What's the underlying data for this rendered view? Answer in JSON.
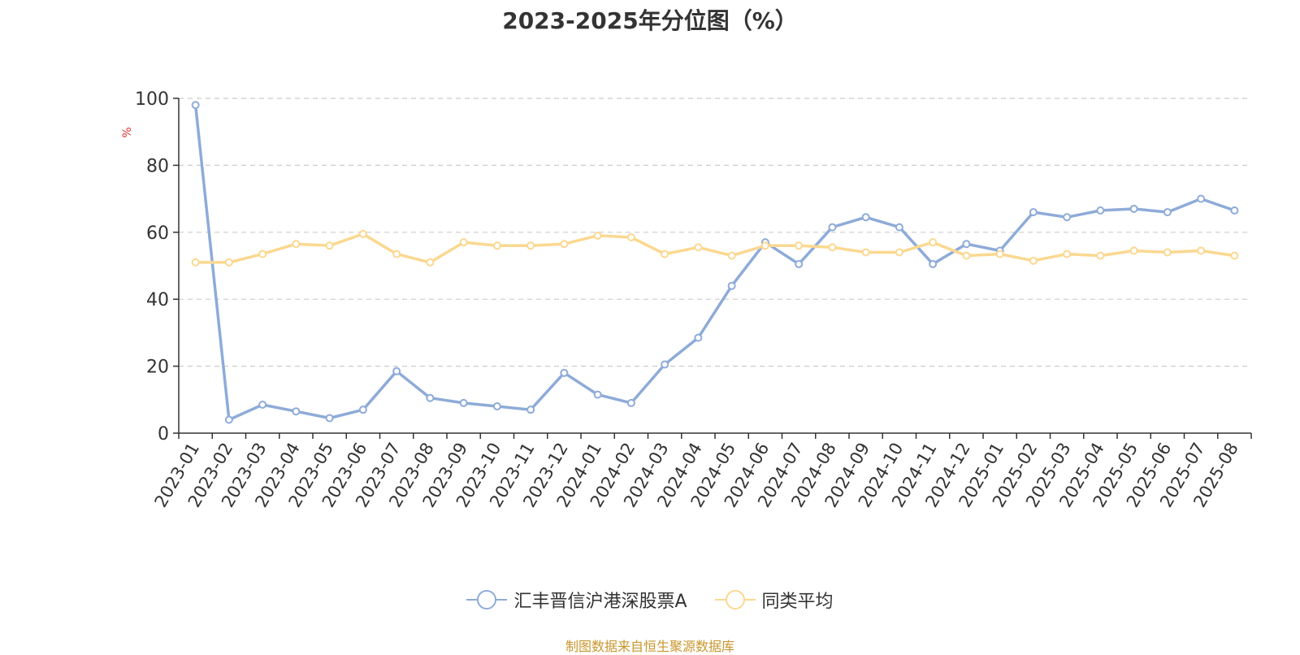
{
  "chart_data": {
    "type": "line",
    "title": "2023-2025年分位图（%）",
    "ylabel": "%",
    "ylim": [
      0,
      100
    ],
    "yticks": [
      0,
      20,
      40,
      60,
      80,
      100
    ],
    "grid": true,
    "legend_position": "bottom",
    "categories": [
      "2023-01",
      "2023-02",
      "2023-03",
      "2023-04",
      "2023-05",
      "2023-06",
      "2023-07",
      "2023-08",
      "2023-09",
      "2023-10",
      "2023-11",
      "2023-12",
      "2024-01",
      "2024-02",
      "2024-03",
      "2024-04",
      "2024-05",
      "2024-06",
      "2024-07",
      "2024-08",
      "2024-09",
      "2024-10",
      "2024-11",
      "2024-12",
      "2025-01",
      "2025-02",
      "2025-03",
      "2025-04",
      "2025-05",
      "2025-06",
      "2025-07",
      "2025-08"
    ],
    "series": [
      {
        "name": "汇丰晋信沪港深股票A",
        "color": "#8eabd8",
        "values": [
          98,
          4,
          8.5,
          6.5,
          4.5,
          7,
          18.5,
          10.5,
          9,
          8,
          7,
          18,
          11.5,
          9,
          20.5,
          28.5,
          44,
          57,
          50.5,
          61.5,
          64.5,
          61.5,
          50.5,
          56.5,
          54.5,
          66,
          64.5,
          66.5,
          67,
          66,
          70,
          66.5
        ]
      },
      {
        "name": "同类平均",
        "color": "#fbd890",
        "values": [
          51,
          51,
          53.5,
          56.5,
          56,
          59.5,
          53.5,
          51,
          57,
          56,
          56,
          56.5,
          59,
          58.5,
          53.5,
          55.5,
          53,
          56,
          56,
          55.5,
          54,
          54,
          57,
          53,
          53.5,
          51.5,
          53.5,
          53,
          54.5,
          54,
          54.5,
          53
        ]
      }
    ]
  },
  "source_text": "制图数据来自恒生聚源数据库"
}
